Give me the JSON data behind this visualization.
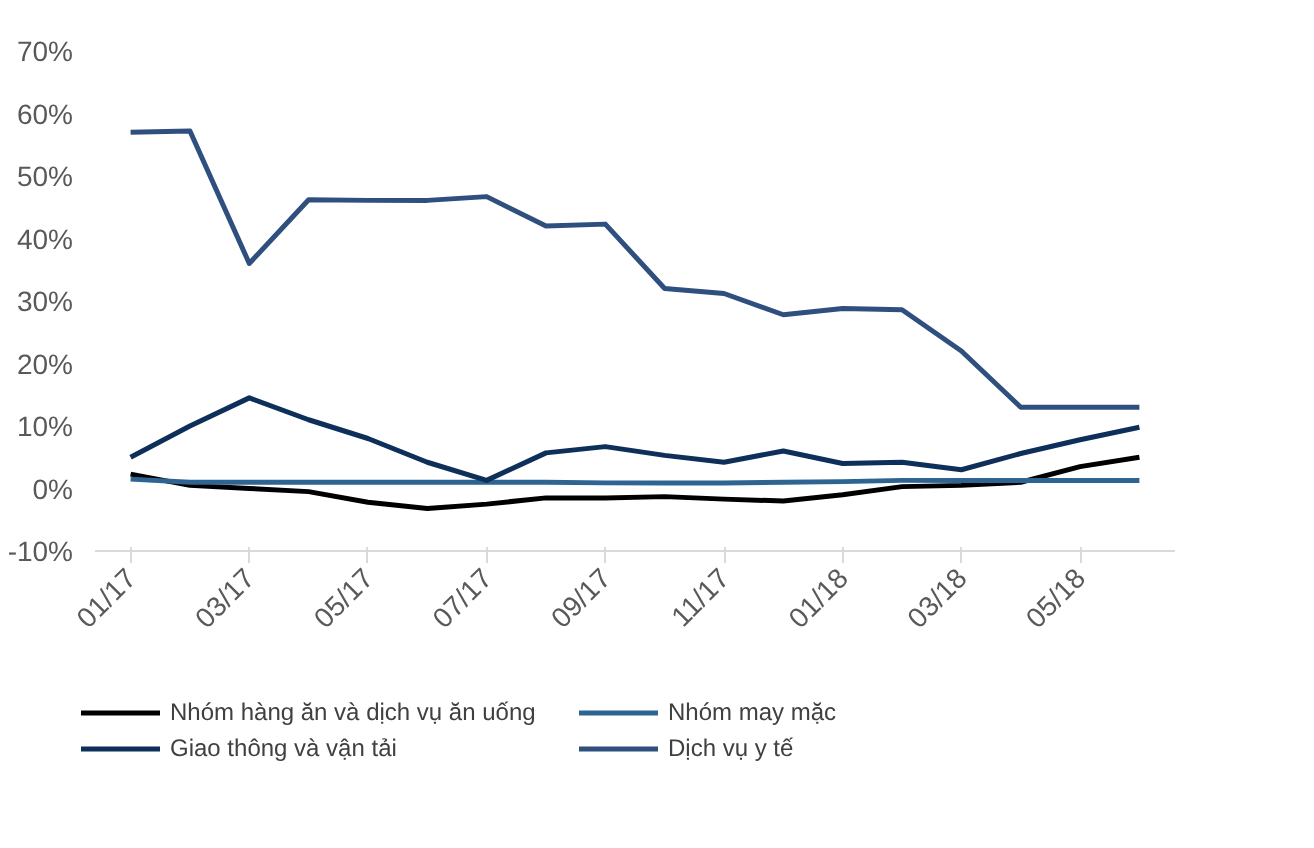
{
  "chart_data": {
    "type": "line",
    "categories": [
      "01/17",
      null,
      "03/17",
      null,
      "05/17",
      null,
      "07/17",
      null,
      "09/17",
      null,
      "11/17",
      null,
      "01/18",
      null,
      "03/18",
      null,
      "05/18",
      null
    ],
    "series": [
      {
        "name": "Nhóm hàng ăn và dịch vụ ăn uống",
        "color": "#000000",
        "values": [
          2.3,
          0.5,
          0,
          -0.5,
          -2.2,
          -3.2,
          -2.5,
          -1.5,
          -1.5,
          -1.3,
          -1.7,
          -2,
          -1,
          0.3,
          0.5,
          1,
          3.5,
          5
        ]
      },
      {
        "name": "Nhóm may mặc",
        "color": "#2e6491",
        "values": [
          1.5,
          1.0,
          1.0,
          1.0,
          1.0,
          1.0,
          1.0,
          1.0,
          0.9,
          0.9,
          0.9,
          1.0,
          1.1,
          1.3,
          1.3,
          1.3,
          1.3,
          1.3
        ]
      },
      {
        "name": "Giao thông và vận tải",
        "color": "#0d2f5a",
        "values": [
          5,
          10,
          14.5,
          11,
          8,
          4.2,
          1.3,
          5.7,
          6.7,
          5.3,
          4.2,
          6,
          4,
          4.2,
          3,
          5.6,
          7.8,
          9.8
        ]
      },
      {
        "name": "Dịch vụ y tế",
        "color": "#2f4f7f",
        "values": [
          57,
          57.2,
          36,
          46.2,
          46.1,
          46.1,
          46.7,
          42,
          42.3,
          32,
          31.2,
          27.8,
          28.8,
          28.6,
          22,
          13,
          13,
          13
        ]
      }
    ],
    "ylim": [
      -10,
      70
    ],
    "yticks": [
      {
        "value": -10,
        "label": "-10%"
      },
      {
        "value": 0,
        "label": "0%"
      },
      {
        "value": 10,
        "label": "10%"
      },
      {
        "value": 20,
        "label": "20%"
      },
      {
        "value": 30,
        "label": "30%"
      },
      {
        "value": 40,
        "label": "40%"
      },
      {
        "value": 50,
        "label": "50%"
      },
      {
        "value": 60,
        "label": "60%"
      },
      {
        "value": 70,
        "label": "70%"
      }
    ],
    "grid": false,
    "legend": "bottom",
    "line_style": "solid"
  }
}
